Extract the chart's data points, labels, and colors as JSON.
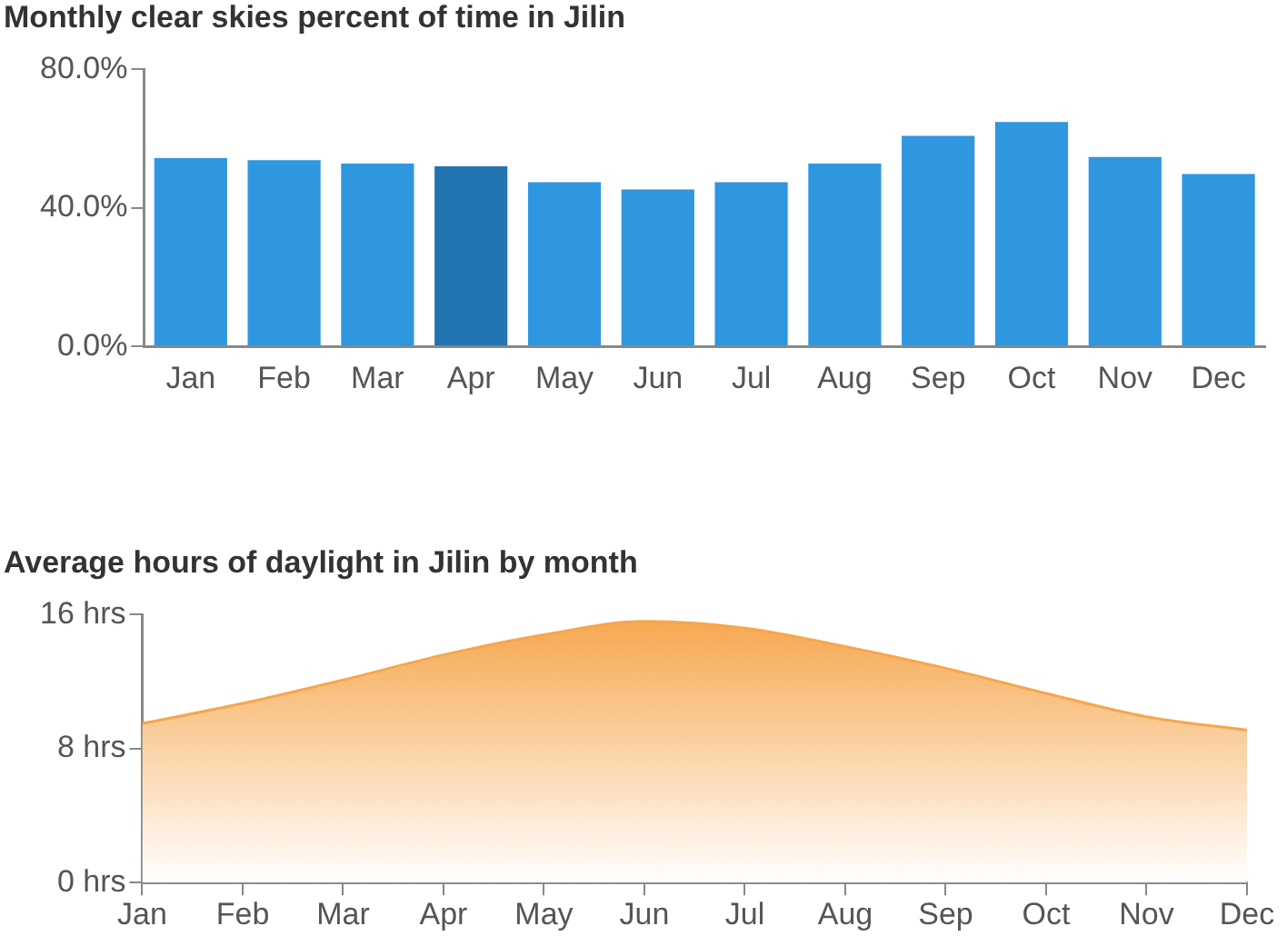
{
  "chart_data": [
    {
      "type": "bar",
      "title": "Monthly clear skies percent of time in Jilin",
      "categories": [
        "Jan",
        "Feb",
        "Mar",
        "Apr",
        "May",
        "Jun",
        "Jul",
        "Aug",
        "Sep",
        "Oct",
        "Nov",
        "Dec"
      ],
      "values": [
        54.4,
        53.8,
        52.8,
        52,
        47.4,
        45.3,
        47.4,
        52.8,
        60.8,
        64.8,
        54.7,
        49.8
      ],
      "colors": [
        "#2f96e0",
        "#2f96e0",
        "#2f96e0",
        "#2274b0",
        "#2f96e0",
        "#2f96e0",
        "#2f96e0",
        "#2f96e0",
        "#2f96e0",
        "#2f96e0",
        "#2f96e0",
        "#2f96e0"
      ],
      "ylim": [
        0,
        80
      ],
      "yticks": [
        {
          "value": 0,
          "label": "0.0%"
        },
        {
          "value": 40,
          "label": "40.0%"
        },
        {
          "value": 80,
          "label": "80.0%"
        }
      ],
      "grid": false,
      "legend": false
    },
    {
      "type": "area",
      "title": "Average hours of daylight in Jilin by month",
      "categories": [
        "Jan",
        "Feb",
        "Mar",
        "Apr",
        "May",
        "Jun",
        "Jul",
        "Aug",
        "Sep",
        "Oct",
        "Nov",
        "Dec"
      ],
      "values": [
        9.5,
        10.7,
        12.1,
        13.6,
        14.8,
        15.6,
        15.2,
        14.1,
        12.8,
        11.3,
        9.9,
        9.1
      ],
      "color": "#f6a64c",
      "ylim": [
        0,
        16
      ],
      "yticks": [
        {
          "value": 0,
          "label": "0 hrs"
        },
        {
          "value": 8,
          "label": "8 hrs"
        },
        {
          "value": 16,
          "label": "16 hrs"
        }
      ],
      "grid": false,
      "legend": false
    }
  ]
}
